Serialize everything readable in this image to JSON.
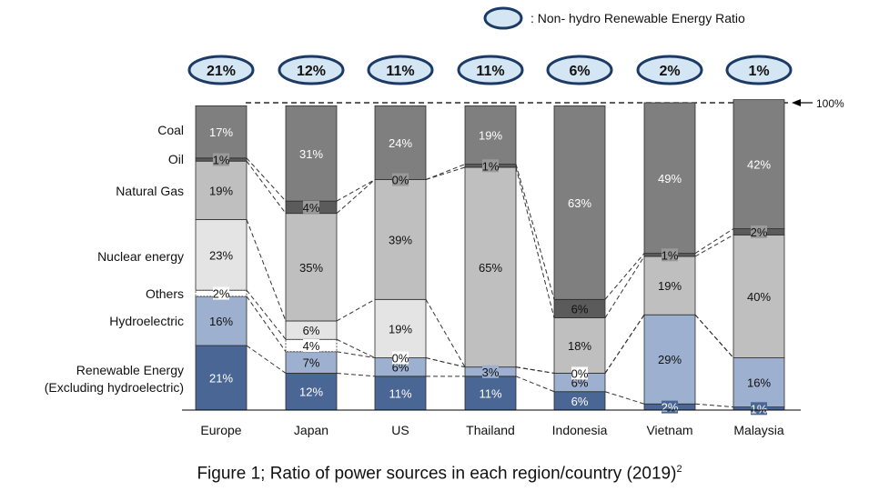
{
  "legend": {
    "text": ": Non- hydro Renewable Energy Ratio"
  },
  "reference_label": "100%",
  "caption": {
    "text": "Figure 1; Ratio of power sources in each region/country (2019)",
    "sup": "2"
  },
  "colors": {
    "Coal": "#7f7f7f",
    "Oil": "#5b5b5b",
    "Natural Gas": "#bfbfbf",
    "Nuclear energy": "#e4e4e4",
    "Others": "#ffffff",
    "Hydroelectric": "#9eb0cf",
    "Renewable Energy (Excluding hydroelectric)": "#4a6694",
    "ellipse_fill": "#d4e6f3",
    "ellipse_stroke": "#1b3a66"
  },
  "chart_data": {
    "type": "bar",
    "stacked": true,
    "ylim": [
      0,
      100
    ],
    "categories": [
      "Europe",
      "Japan",
      "US",
      "Thailand",
      "Indonesia",
      "Vietnam",
      "Malaysia"
    ],
    "non_hydro_renewable_ratio": [
      "21%",
      "12%",
      "11%",
      "11%",
      "6%",
      "2%",
      "1%"
    ],
    "series": [
      {
        "name": "Renewable Energy (Excluding hydroelectric)",
        "values": [
          21,
          12,
          11,
          11,
          6,
          2,
          1
        ]
      },
      {
        "name": "Hydroelectric",
        "values": [
          16,
          7,
          6,
          3,
          6,
          29,
          16
        ]
      },
      {
        "name": "Others",
        "values": [
          2,
          4,
          0,
          0,
          0,
          0,
          0
        ]
      },
      {
        "name": "Nuclear energy",
        "values": [
          23,
          6,
          19,
          0,
          0,
          0,
          0
        ]
      },
      {
        "name": "Natural Gas",
        "values": [
          19,
          35,
          39,
          65,
          18,
          19,
          40
        ]
      },
      {
        "name": "Oil",
        "values": [
          1,
          4,
          0,
          1,
          6,
          1,
          2
        ]
      },
      {
        "name": "Coal",
        "values": [
          17,
          31,
          24,
          19,
          63,
          49,
          42
        ]
      }
    ],
    "data_labels": [
      [
        "21%",
        "16%",
        "2%",
        "23%",
        "19%",
        "1%",
        "17%"
      ],
      [
        "12%",
        "7%",
        "4%",
        "6%",
        "35%",
        "4%",
        "31%"
      ],
      [
        "11%",
        "6%",
        "0%",
        "19%",
        "39%",
        "0%",
        "24%"
      ],
      [
        "11%",
        "3%",
        null,
        null,
        "65%",
        "1%",
        "19%"
      ],
      [
        "6%",
        "6%",
        "0%",
        null,
        "18%",
        "6%",
        "63%"
      ],
      [
        "2%",
        "29%",
        null,
        null,
        "19%",
        "1%",
        "49%"
      ],
      [
        "1%",
        "16%",
        null,
        null,
        "40%",
        "2%",
        "42%"
      ]
    ],
    "category_labels_left": [
      "Coal",
      "Oil",
      "Natural Gas",
      "Nuclear energy",
      "Others",
      "Hydroelectric",
      "Renewable Energy",
      "(Excluding hydroelectric)"
    ]
  }
}
